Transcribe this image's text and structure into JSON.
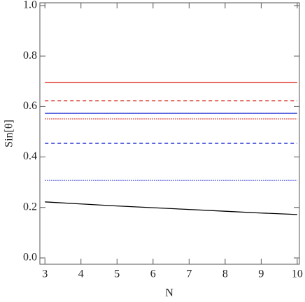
{
  "chart_data": {
    "type": "line",
    "x_label": "N",
    "y_label": "Sin[θ]",
    "x": [
      3,
      4,
      5,
      6,
      7,
      8,
      9,
      10
    ],
    "xlim": [
      2.86,
      10.06
    ],
    "ylim": [
      -0.025,
      1.011
    ],
    "xticks": [
      3,
      4,
      5,
      6,
      7,
      8,
      9,
      10
    ],
    "yticks": [
      {
        "value": 0,
        "label": "0.0"
      },
      {
        "value": 0.2,
        "label": "0.2"
      },
      {
        "value": 0.4,
        "label": "0.4"
      },
      {
        "value": 0.6,
        "label": "0.6"
      },
      {
        "value": 0.8,
        "label": "0.8"
      },
      {
        "value": 1,
        "label": "1.0"
      }
    ],
    "series": [
      {
        "color": "#d62a1e",
        "style": "solid",
        "values": [
          0.695,
          0.695,
          0.695,
          0.695,
          0.695,
          0.695,
          0.695,
          0.695
        ]
      },
      {
        "color": "#d62a1e",
        "style": "dashed",
        "values": [
          0.623,
          0.623,
          0.623,
          0.623,
          0.623,
          0.623,
          0.623,
          0.623
        ]
      },
      {
        "color": "#1f2ed0",
        "style": "solid",
        "values": [
          0.573,
          0.573,
          0.573,
          0.573,
          0.573,
          0.573,
          0.573,
          0.573
        ]
      },
      {
        "color": "#d62a1e",
        "style": "dotted",
        "values": [
          0.551,
          0.551,
          0.551,
          0.551,
          0.551,
          0.551,
          0.551,
          0.551
        ]
      },
      {
        "color": "#1f2ed0",
        "style": "dashed",
        "values": [
          0.454,
          0.454,
          0.454,
          0.454,
          0.454,
          0.454,
          0.454,
          0.454
        ]
      },
      {
        "color": "#1f2ed0",
        "style": "dotted",
        "values": [
          0.307,
          0.307,
          0.307,
          0.307,
          0.307,
          0.307,
          0.307,
          0.307
        ]
      },
      {
        "color": "#000000",
        "style": "solid",
        "values": [
          0.222,
          0.214,
          0.206,
          0.199,
          0.192,
          0.185,
          0.178,
          0.172
        ]
      }
    ]
  }
}
